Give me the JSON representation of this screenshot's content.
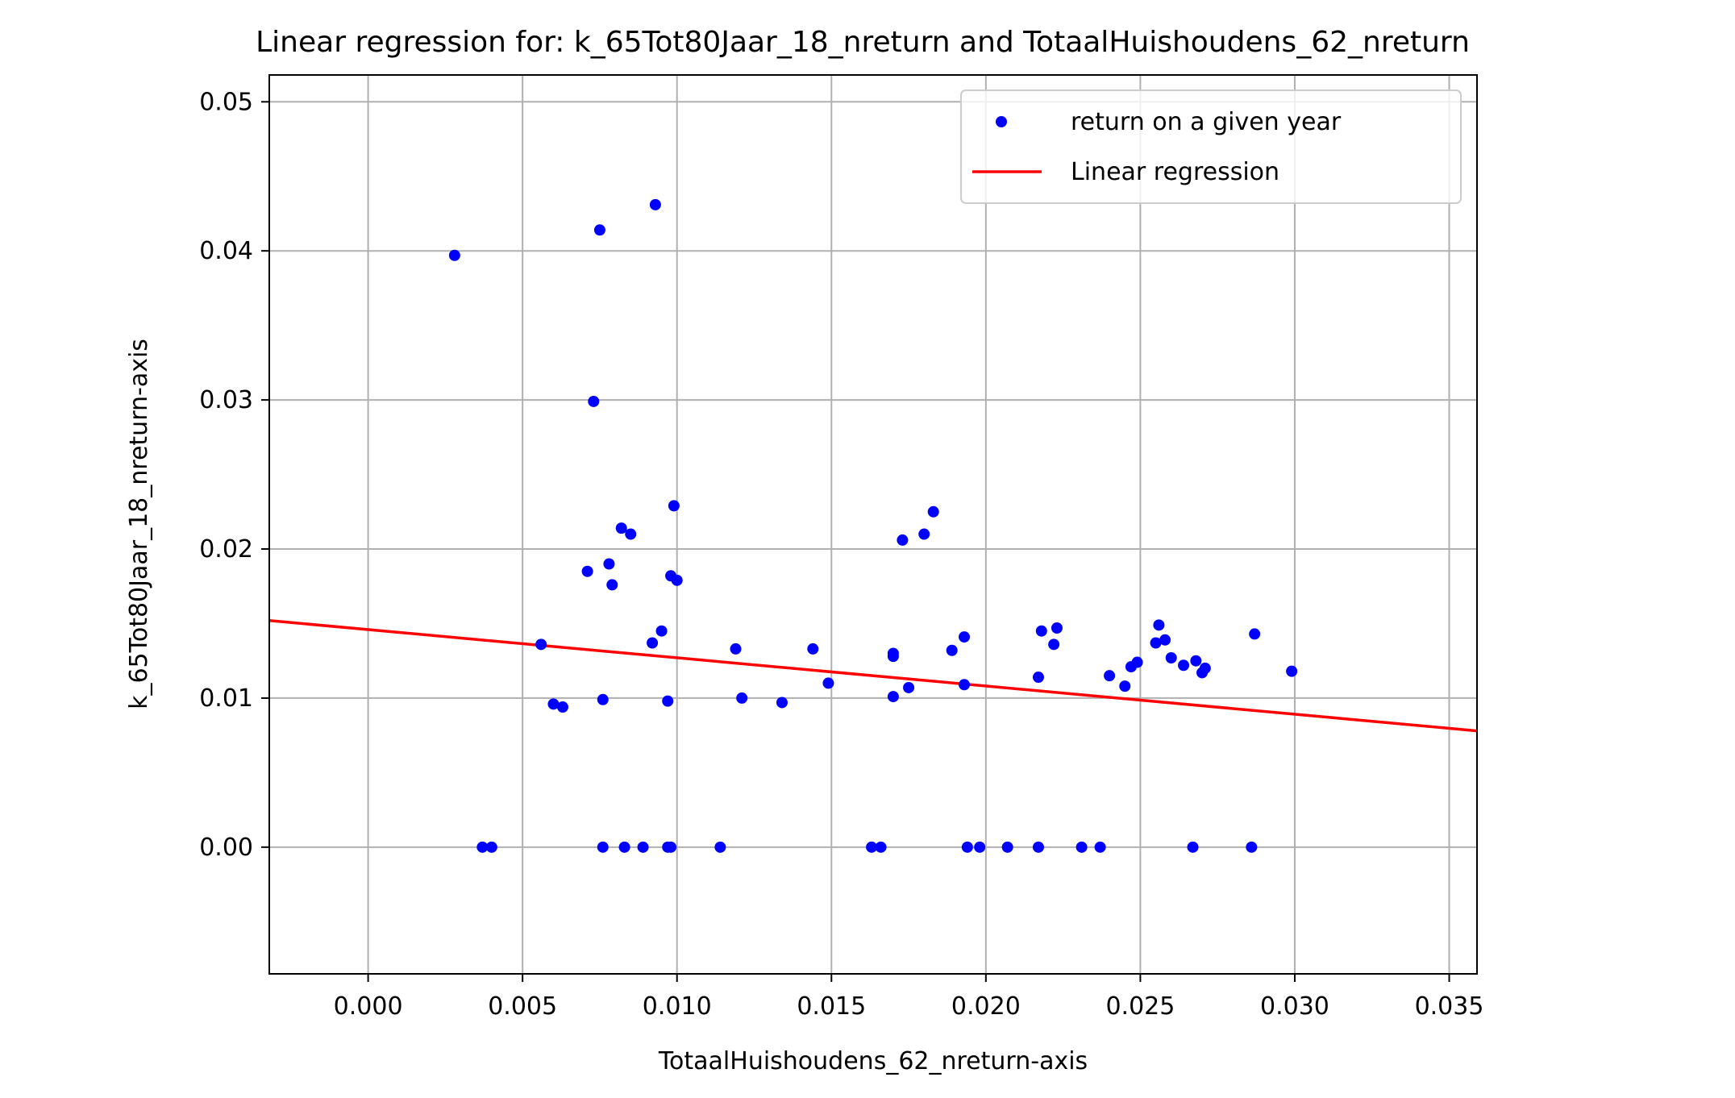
{
  "chart_data": {
    "type": "scatter",
    "title": "Linear regression for: k_65Tot80Jaar_18_nreturn and TotaalHuishoudens_62_nreturn",
    "xlabel": "TotaalHuishoudens_62_nreturn-axis",
    "ylabel": "k_65Tot80Jaar_18_nreturn-axis",
    "xlim": [
      -0.0032,
      0.0359
    ],
    "ylim": [
      -0.0085,
      0.0518
    ],
    "xticks": [
      0.0,
      0.005,
      0.01,
      0.015,
      0.02,
      0.025,
      0.03,
      0.035
    ],
    "xtick_labels": [
      "0.000",
      "0.005",
      "0.010",
      "0.015",
      "0.020",
      "0.025",
      "0.030",
      "0.035"
    ],
    "yticks": [
      0.0,
      0.01,
      0.02,
      0.03,
      0.04,
      0.05
    ],
    "ytick_labels": [
      "0.00",
      "0.01",
      "0.02",
      "0.03",
      "0.04",
      "0.05"
    ],
    "grid": true,
    "legend": {
      "location": "top-right",
      "entries": [
        {
          "label": "return on a given year",
          "kind": "marker",
          "color": "#0000ff"
        },
        {
          "label": "Linear regression",
          "kind": "line",
          "color": "#ff0000"
        }
      ]
    },
    "series": [
      {
        "name": "return on a given year",
        "kind": "scatter",
        "color": "#0000ff",
        "points": [
          [
            0.0028,
            0.0397
          ],
          [
            0.0075,
            0.0414
          ],
          [
            0.0093,
            0.0431
          ],
          [
            0.0073,
            0.0299
          ],
          [
            0.0099,
            0.0229
          ],
          [
            0.0082,
            0.0214
          ],
          [
            0.0085,
            0.021
          ],
          [
            0.0071,
            0.0185
          ],
          [
            0.0078,
            0.019
          ],
          [
            0.0079,
            0.0176
          ],
          [
            0.0098,
            0.0182
          ],
          [
            0.01,
            0.0179
          ],
          [
            0.0095,
            0.0145
          ],
          [
            0.0092,
            0.0137
          ],
          [
            0.0056,
            0.0136
          ],
          [
            0.006,
            0.0096
          ],
          [
            0.0063,
            0.0094
          ],
          [
            0.0076,
            0.0099
          ],
          [
            0.0097,
            0.0098
          ],
          [
            0.0119,
            0.0133
          ],
          [
            0.0121,
            0.01
          ],
          [
            0.0134,
            0.0097
          ],
          [
            0.0144,
            0.0133
          ],
          [
            0.0149,
            0.011
          ],
          [
            0.017,
            0.013
          ],
          [
            0.017,
            0.0128
          ],
          [
            0.017,
            0.0101
          ],
          [
            0.0175,
            0.0107
          ],
          [
            0.0173,
            0.0206
          ],
          [
            0.018,
            0.021
          ],
          [
            0.0183,
            0.0225
          ],
          [
            0.0189,
            0.0132
          ],
          [
            0.0193,
            0.0141
          ],
          [
            0.0193,
            0.0109
          ],
          [
            0.0218,
            0.0145
          ],
          [
            0.0217,
            0.0114
          ],
          [
            0.0223,
            0.0147
          ],
          [
            0.0222,
            0.0136
          ],
          [
            0.024,
            0.0115
          ],
          [
            0.0245,
            0.0108
          ],
          [
            0.0247,
            0.0121
          ],
          [
            0.0249,
            0.0124
          ],
          [
            0.0255,
            0.0137
          ],
          [
            0.0256,
            0.0149
          ],
          [
            0.0258,
            0.0139
          ],
          [
            0.026,
            0.0127
          ],
          [
            0.0264,
            0.0122
          ],
          [
            0.0268,
            0.0125
          ],
          [
            0.027,
            0.0117
          ],
          [
            0.0271,
            0.012
          ],
          [
            0.0287,
            0.0143
          ],
          [
            0.0299,
            0.0118
          ],
          [
            0.0037,
            0.0
          ],
          [
            0.004,
            0.0
          ],
          [
            0.0076,
            0.0
          ],
          [
            0.0083,
            0.0
          ],
          [
            0.0089,
            0.0
          ],
          [
            0.0097,
            0.0
          ],
          [
            0.0098,
            0.0
          ],
          [
            0.0114,
            0.0
          ],
          [
            0.0163,
            0.0
          ],
          [
            0.0166,
            0.0
          ],
          [
            0.0194,
            0.0
          ],
          [
            0.0198,
            0.0
          ],
          [
            0.0207,
            0.0
          ],
          [
            0.0217,
            0.0
          ],
          [
            0.0231,
            0.0
          ],
          [
            0.0237,
            0.0
          ],
          [
            0.0267,
            0.0
          ],
          [
            0.0286,
            0.0
          ]
        ]
      },
      {
        "name": "Linear regression",
        "kind": "line",
        "color": "#ff0000",
        "points": [
          [
            -0.0032,
            0.0152
          ],
          [
            0.0359,
            0.0078
          ]
        ]
      }
    ]
  }
}
